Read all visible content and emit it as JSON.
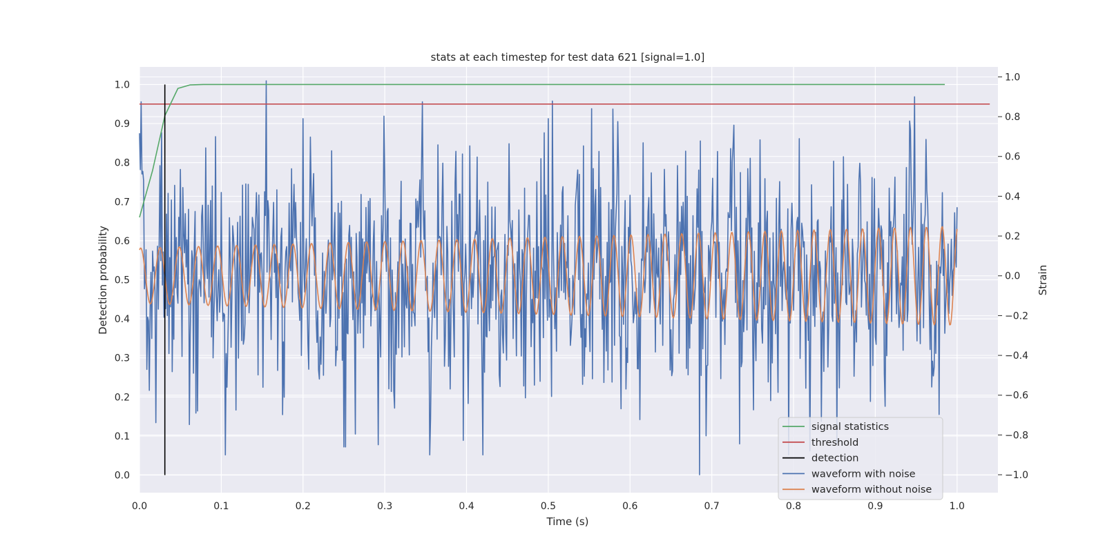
{
  "chart_data": {
    "type": "line",
    "title": "stats at each timestep for test data 621 [signal=1.0]",
    "xlabel": "Time (s)",
    "ylabel": "Detection probability",
    "y2label": "Strain",
    "xlim": [
      0.0,
      1.05
    ],
    "ylim": [
      -0.045,
      1.045
    ],
    "y2lim": [
      -1.09,
      1.05
    ],
    "xticks": [
      "0.0",
      "0.1",
      "0.2",
      "0.3",
      "0.4",
      "0.5",
      "0.6",
      "0.7",
      "0.8",
      "0.9",
      "1.0"
    ],
    "yticks": [
      "0.0",
      "0.1",
      "0.2",
      "0.3",
      "0.4",
      "0.5",
      "0.6",
      "0.7",
      "0.8",
      "0.9",
      "1.0"
    ],
    "y2ticks": [
      "−1.0",
      "−0.8",
      "−0.6",
      "−0.4",
      "−0.2",
      "0.0",
      "0.2",
      "0.4",
      "0.6",
      "0.8",
      "1.0"
    ],
    "grid": true,
    "legend_position": "lower-right",
    "series": [
      {
        "name": "signal statistics",
        "color": "#55a868",
        "axis": "left",
        "x": [
          0.0,
          0.016,
          0.031,
          0.047,
          0.062,
          0.078,
          0.1,
          0.2,
          0.4,
          0.6,
          0.8,
          0.985
        ],
        "values": [
          0.66,
          0.78,
          0.92,
          0.99,
          0.999,
          1.0,
          1.0,
          1.0,
          1.0,
          1.0,
          1.0,
          1.0
        ]
      },
      {
        "name": "threshold",
        "color": "#c44e52",
        "axis": "left",
        "x": [
          0.0,
          1.04
        ],
        "values": [
          0.95,
          0.95
        ]
      },
      {
        "name": "detection",
        "color": "#000000",
        "axis": "left",
        "x": [
          0.031,
          0.031
        ],
        "values": [
          0.0,
          1.0
        ]
      },
      {
        "name": "waveform with noise",
        "color": "#4c72b0",
        "axis": "right",
        "x_range": [
          0.0,
          1.0
        ],
        "amplitude": 0.3,
        "peaks": [
          [
            0.155,
            0.98
          ],
          [
            0.252,
            -0.86
          ],
          [
            0.685,
            -1.0
          ],
          [
            0.82,
            0.84
          ],
          [
            0.82,
            -0.88
          ],
          [
            0.553,
            0.84
          ],
          [
            0.5,
            0.79
          ],
          [
            0.2,
            0.79
          ],
          [
            0.069,
            -0.69
          ],
          [
            0.25,
            -0.86
          ]
        ]
      },
      {
        "name": "waveform without noise",
        "color": "#dd8452",
        "axis": "right",
        "x_range": [
          0.0,
          1.0
        ],
        "amplitude_start": 0.14,
        "amplitude_end": 0.25,
        "offset": 0.0,
        "frequency_start": 42,
        "frequency_end": 52
      }
    ]
  }
}
